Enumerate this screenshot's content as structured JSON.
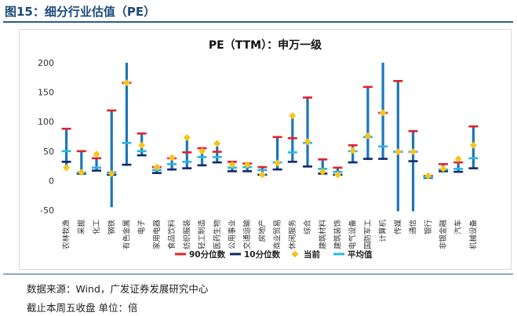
{
  "figure": {
    "title": "图15：细分行业估值（PE）",
    "source": "数据来源：Wind，广发证券发展研究中心",
    "note": "截止本周五收盘 单位：倍"
  },
  "chart_data": {
    "type": "box-range",
    "title": "PE（TTM）：申万一级",
    "ylim": [
      -50,
      200
    ],
    "yticks": [
      -50,
      0,
      50,
      100,
      150,
      200
    ],
    "grid": false,
    "legend_position": "bottom",
    "legend": [
      {
        "key": "p90",
        "label": "90分位数",
        "color": "#e8202a"
      },
      {
        "key": "p10",
        "label": "10分位数",
        "color": "#0e2a6b"
      },
      {
        "key": "current",
        "label": "当前",
        "color": "#f5c518"
      },
      {
        "key": "mean",
        "label": "平均值",
        "color": "#29b6e8"
      }
    ],
    "bar_color": "#1b75bc",
    "categories": [
      "农林牧渔",
      "采掘",
      "化工",
      "钢铁",
      "有色金属",
      "电子",
      "家用电器",
      "食品饮料",
      "纺织服装",
      "轻工制造",
      "医药生物",
      "公用事业",
      "交通运输",
      "房地产",
      "商业贸易",
      "休闲服务",
      "综合",
      "建筑材料",
      "建筑装饰",
      "电气设备",
      "国防军工",
      "计算机",
      "传媒",
      "通信",
      "银行",
      "非银金融",
      "汽车",
      "机械设备"
    ],
    "series": [
      {
        "name": "max",
        "values": [
          88,
          50,
          38,
          120,
          200,
          80,
          24,
          40,
          75,
          57,
          58,
          33,
          30,
          24,
          75,
          112,
          142,
          38,
          22,
          61,
          160,
          200,
          169,
          85,
          8,
          29,
          32,
          92
        ]
      },
      {
        "name": "min",
        "values": [
          22,
          12,
          16,
          -45,
          25,
          43,
          13,
          17,
          20,
          26,
          30,
          15,
          15,
          10,
          18,
          32,
          24,
          12,
          10,
          30,
          35,
          36,
          -52,
          -52,
          3,
          14,
          14,
          20
        ]
      },
      {
        "name": "90分位数",
        "values": [
          88,
          50,
          38,
          119,
          166,
          80,
          23,
          38,
          48,
          55,
          49,
          32,
          29,
          23,
          74,
          72,
          141,
          36,
          22,
          60,
          159,
          115,
          169,
          84,
          8,
          28,
          31,
          92
        ]
      },
      {
        "name": "10分位数",
        "values": [
          32,
          12,
          17,
          10,
          27,
          43,
          13,
          19,
          21,
          26,
          31,
          16,
          16,
          10,
          19,
          32,
          24,
          12,
          10,
          31,
          37,
          37,
          49,
          33,
          5,
          16,
          15,
          21
        ]
      },
      {
        "name": "当前",
        "values": [
          22,
          14,
          45,
          12,
          166,
          60,
          23,
          39,
          73,
          50,
          63,
          27,
          27,
          10,
          30,
          110,
          66,
          15,
          10,
          51,
          76,
          115,
          49,
          49,
          8,
          20,
          37,
          60
        ]
      },
      {
        "name": "平均值",
        "values": [
          50,
          14,
          22,
          14,
          64,
          50,
          18,
          28,
          32,
          40,
          40,
          22,
          23,
          18,
          31,
          48,
          64,
          20,
          15,
          50,
          74,
          58,
          49,
          49,
          6,
          19,
          20,
          38
        ]
      }
    ]
  }
}
